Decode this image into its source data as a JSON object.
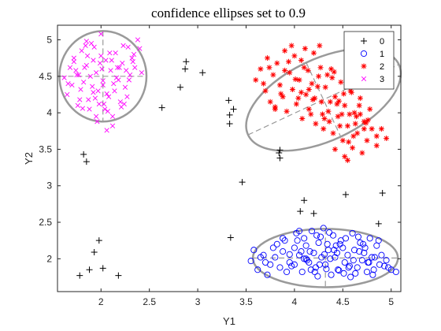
{
  "chart_data": {
    "type": "scatter",
    "title": "confidence ellipses set to 0.9",
    "xlabel": "Y1",
    "ylabel": "Y2",
    "xlim": [
      1.55,
      5.1
    ],
    "ylim": [
      1.55,
      5.2
    ],
    "xticks": [
      2,
      2.5,
      3,
      3.5,
      4,
      4.5,
      5
    ],
    "xtick_labels": [
      "2",
      "2.5",
      "3",
      "3.5",
      "4",
      "4.5",
      "5"
    ],
    "yticks": [
      2,
      2.5,
      3,
      3.5,
      4,
      4.5,
      5
    ],
    "ytick_labels": [
      "2",
      "2.5",
      "3",
      "3.5",
      "4",
      "4.5",
      "5"
    ],
    "grid": false,
    "legend_position": "top-right",
    "series": [
      {
        "name": "0",
        "marker": "plus",
        "color": "#000000",
        "x": [
          1.78,
          1.82,
          1.85,
          1.88,
          1.93,
          1.98,
          2.02,
          2.18,
          2.63,
          2.88,
          2.87,
          2.82,
          3.05,
          3.32,
          3.33,
          3.33,
          3.37,
          3.34,
          3.46,
          3.85,
          3.85,
          4.06,
          4.1,
          4.2,
          4.53,
          4.87,
          4.91,
          3.84
        ],
        "y": [
          1.77,
          3.43,
          3.33,
          1.85,
          2.09,
          2.25,
          1.87,
          1.77,
          4.07,
          4.7,
          4.6,
          4.35,
          4.55,
          4.17,
          3.85,
          3.97,
          4.05,
          2.29,
          3.05,
          3.49,
          3.38,
          2.65,
          2.8,
          2.62,
          2.88,
          2.48,
          2.9,
          3.45
        ]
      },
      {
        "name": "1",
        "marker": "circle",
        "color": "#0000ff",
        "x": [
          3.55,
          3.62,
          3.68,
          3.72,
          3.75,
          3.8,
          3.85,
          3.88,
          3.9,
          3.95,
          4.0,
          4.02,
          4.05,
          4.08,
          4.1,
          4.12,
          4.15,
          4.18,
          4.2,
          4.22,
          4.25,
          4.28,
          4.3,
          4.32,
          4.35,
          4.38,
          4.4,
          4.42,
          4.45,
          4.48,
          4.5,
          4.52,
          4.55,
          4.58,
          4.6,
          4.62,
          4.65,
          4.68,
          4.7,
          4.72,
          4.75,
          4.78,
          4.8,
          4.82,
          4.85,
          4.88,
          4.9,
          4.95,
          5.0,
          5.05,
          3.58,
          3.7,
          3.82,
          3.97,
          4.07,
          4.17,
          4.27,
          4.37,
          4.47,
          4.57,
          4.67,
          4.77,
          4.87,
          4.97,
          3.65,
          3.78,
          3.92,
          4.03,
          4.13,
          4.23,
          4.33,
          4.43,
          4.53,
          4.63,
          4.73,
          4.83,
          4.93,
          3.88,
          4.0,
          4.1,
          4.21,
          4.31,
          4.41,
          4.51,
          4.61,
          4.71,
          4.81,
          4.05,
          4.16,
          4.26,
          4.36,
          4.46,
          4.56,
          4.66,
          4.76,
          3.95,
          4.12,
          4.24,
          4.34,
          4.44
        ],
        "y": [
          1.97,
          1.85,
          2.05,
          1.78,
          1.92,
          2.02,
          1.88,
          2.1,
          2.25,
          1.95,
          2.15,
          2.35,
          2.05,
          1.82,
          2.28,
          2.18,
          1.95,
          2.38,
          2.08,
          1.88,
          2.22,
          2.02,
          2.42,
          1.92,
          2.12,
          1.78,
          2.32,
          2.02,
          1.85,
          2.25,
          2.15,
          1.95,
          2.05,
          1.75,
          2.35,
          2.12,
          1.88,
          2.22,
          1.98,
          2.08,
          1.82,
          2.28,
          2.02,
          1.85,
          2.18,
          1.92,
          2.05,
          1.98,
          1.85,
          1.82,
          2.12,
          1.95,
          2.2,
          1.9,
          2.1,
          1.85,
          2.3,
          2.0,
          2.2,
          1.9,
          2.1,
          1.95,
          2.25,
          1.88,
          2.02,
          2.15,
          1.82,
          2.25,
          1.98,
          2.32,
          1.86,
          2.18,
          2.28,
          1.8,
          2.15,
          2.02,
          1.9,
          2.28,
          1.92,
          2.0,
          1.82,
          2.06,
          2.12,
          1.8,
          1.98,
          2.2,
          1.78,
          2.38,
          2.1,
          1.92,
          2.36,
          1.84,
          1.88,
          2.3,
          1.95,
          2.06,
          2.0,
          1.76,
          2.2,
          2.08
        ]
      },
      {
        "name": "2",
        "marker": "star",
        "color": "#ff0000",
        "x": [
          3.6,
          3.65,
          3.7,
          3.72,
          3.75,
          3.78,
          3.8,
          3.82,
          3.85,
          3.88,
          3.9,
          3.92,
          3.95,
          3.98,
          4.0,
          4.02,
          4.05,
          4.08,
          4.1,
          4.12,
          4.15,
          4.18,
          4.2,
          4.22,
          4.25,
          4.28,
          4.3,
          4.32,
          4.35,
          4.38,
          4.4,
          4.42,
          4.45,
          4.48,
          4.5,
          4.52,
          4.55,
          4.58,
          4.6,
          4.62,
          4.65,
          4.68,
          4.7,
          4.72,
          4.75,
          4.78,
          4.8,
          4.85,
          4.9,
          4.95,
          3.68,
          3.74,
          3.86,
          3.94,
          4.04,
          4.14,
          4.24,
          4.34,
          4.44,
          4.54,
          4.64,
          4.74,
          3.8,
          3.97,
          4.07,
          4.17,
          4.27,
          4.37,
          4.47,
          4.57,
          4.67,
          3.9,
          4.01,
          4.11,
          4.21,
          4.31,
          4.41,
          4.51,
          4.61,
          4.07,
          4.19,
          4.29,
          4.39,
          4.49,
          4.59,
          4.36,
          4.46,
          4.56,
          4.15,
          4.26,
          4.52,
          4.42,
          4.55,
          4.63,
          4.72,
          4.85,
          4.68,
          4.76
        ],
        "y": [
          4.45,
          4.6,
          4.3,
          4.75,
          4.15,
          4.52,
          4.05,
          4.68,
          4.38,
          4.22,
          4.85,
          4.02,
          4.55,
          4.32,
          4.78,
          4.12,
          4.45,
          3.92,
          4.62,
          4.25,
          4.05,
          4.4,
          4.82,
          3.85,
          4.5,
          4.15,
          3.78,
          4.35,
          4.02,
          4.6,
          3.72,
          4.22,
          3.95,
          4.42,
          3.62,
          4.1,
          3.82,
          4.3,
          3.52,
          4.0,
          3.72,
          4.2,
          3.45,
          3.88,
          3.62,
          4.05,
          3.78,
          3.55,
          3.78,
          3.65,
          4.4,
          4.62,
          4.26,
          4.7,
          4.2,
          4.58,
          4.36,
          4.52,
          4.12,
          4.38,
          3.95,
          3.86,
          4.08,
          4.92,
          4.28,
          3.98,
          4.62,
          4.15,
          3.82,
          3.98,
          4.1,
          4.58,
          4.46,
          4.88,
          4.2,
          3.92,
          4.56,
          4.26,
          3.68,
          4.72,
          4.18,
          3.98,
          4.48,
          3.98,
          4.28,
          3.88,
          4.16,
          3.6,
          4.32,
          4.92,
          3.4,
          3.5,
          3.35,
          3.85,
          3.78,
          3.68,
          3.98,
          3.9
        ]
      },
      {
        "name": "3",
        "marker": "x",
        "color": "#ff00ff",
        "x": [
          1.62,
          1.65,
          1.68,
          1.7,
          1.72,
          1.75,
          1.78,
          1.8,
          1.82,
          1.85,
          1.88,
          1.9,
          1.92,
          1.95,
          1.98,
          2.0,
          2.02,
          2.05,
          2.08,
          2.1,
          2.12,
          2.15,
          2.18,
          2.2,
          2.22,
          2.25,
          2.28,
          2.3,
          2.32,
          2.35,
          2.38,
          2.4,
          1.66,
          1.74,
          1.79,
          1.84,
          1.89,
          1.94,
          1.99,
          2.04,
          2.09,
          2.14,
          2.19,
          2.24,
          2.29,
          2.34,
          1.72,
          1.81,
          1.86,
          1.91,
          1.96,
          2.01,
          2.06,
          2.11,
          2.16,
          2.21,
          2.26,
          1.77,
          1.87,
          1.93,
          2.03,
          2.13,
          2.23,
          1.83,
          1.97,
          2.07,
          2.17,
          1.76,
          1.92,
          2.02,
          2.12,
          1.85,
          1.95,
          2.0,
          2.06,
          2.27,
          2.33,
          2.42
        ],
        "y": [
          4.48,
          4.25,
          4.62,
          4.38,
          4.75,
          4.52,
          4.18,
          4.85,
          4.42,
          4.65,
          4.05,
          4.95,
          4.28,
          4.55,
          4.12,
          5.08,
          4.38,
          4.72,
          4.22,
          4.58,
          3.95,
          4.82,
          4.45,
          4.15,
          4.68,
          4.35,
          4.9,
          4.52,
          4.75,
          4.62,
          5.0,
          4.88,
          4.4,
          4.58,
          4.32,
          4.92,
          4.5,
          4.2,
          4.68,
          4.05,
          4.82,
          4.3,
          4.62,
          4.12,
          4.45,
          4.8,
          4.7,
          4.06,
          4.78,
          4.36,
          3.88,
          4.6,
          4.26,
          4.72,
          4.48,
          4.08,
          4.58,
          4.52,
          4.18,
          4.9,
          4.12,
          4.4,
          4.92,
          4.62,
          4.3,
          4.02,
          4.62,
          4.1,
          4.72,
          4.44,
          3.82,
          4.98,
          3.95,
          4.78,
          3.76,
          4.22,
          4.7,
          4.55
        ]
      }
    ],
    "ellipses": [
      {
        "series": "1",
        "cx": 4.32,
        "cy": 2.01,
        "rx": 0.75,
        "ry": 0.4,
        "angle_deg": 0
      },
      {
        "series": "2",
        "cx": 4.3,
        "cy": 4.18,
        "rx": 0.86,
        "ry": 0.56,
        "angle_deg": -25
      },
      {
        "series": "3",
        "cx": 2.02,
        "cy": 4.5,
        "rx": 0.45,
        "ry": 0.62,
        "angle_deg": 0
      }
    ],
    "colors": {
      "ellipse": "#9a9a9a",
      "axes": "#262626"
    }
  }
}
